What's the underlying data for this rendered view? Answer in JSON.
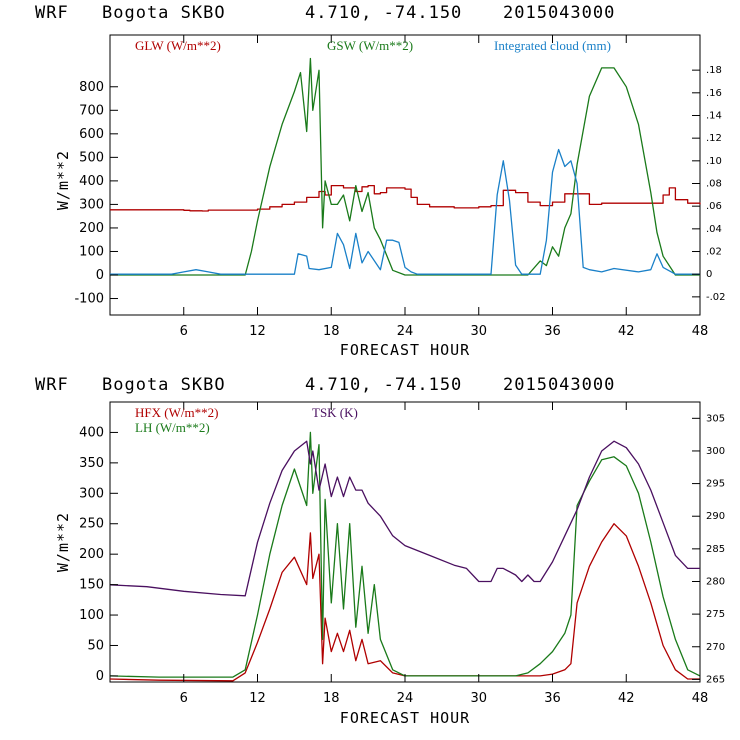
{
  "colors": {
    "red": "#b00000",
    "green": "#1a7a1a",
    "blue": "#1a80c8",
    "purple": "#4a1060",
    "axis": "#000000"
  },
  "chart_data": [
    {
      "type": "line",
      "header": {
        "model": "WRF",
        "station": "Bogota SKBO",
        "coords": "4.710, -74.150",
        "init": "2015043000"
      },
      "title": "WRF  Bogota SKBO  4.710, -74.150  2015043000",
      "xlabel": "FORECAST HOUR",
      "ylabel": "W/m**2",
      "xlim": [
        0,
        48
      ],
      "ylim": [
        -170,
        1020
      ],
      "y2lim": [
        -0.036,
        0.211
      ],
      "x_ticks": [
        6,
        12,
        18,
        24,
        30,
        36,
        42,
        48
      ],
      "y_ticks": [
        -100,
        0,
        100,
        200,
        300,
        400,
        500,
        600,
        700,
        800
      ],
      "y2_ticks": [
        {
          "value": -0.02,
          "label": "-.02"
        },
        {
          "value": 0,
          "label": "0"
        },
        {
          "value": 0.02,
          "label": ".02"
        },
        {
          "value": 0.04,
          "label": ".04"
        },
        {
          "value": 0.06,
          "label": ".06"
        },
        {
          "value": 0.08,
          "label": ".08"
        },
        {
          "value": 0.1,
          "label": ".10"
        },
        {
          "value": 0.12,
          "label": ".12"
        },
        {
          "value": 0.14,
          "label": ".14"
        },
        {
          "value": 0.16,
          "label": ".16"
        },
        {
          "value": 0.18,
          "label": ".18"
        }
      ],
      "series": [
        {
          "name": "GLW (W/m**2)",
          "color": "red",
          "axis": "left",
          "step": true,
          "x": [
            0,
            6,
            6.5,
            7.5,
            8,
            10,
            12,
            13,
            14,
            15,
            16,
            17,
            17.5,
            18,
            19,
            20,
            20.5,
            21,
            21.5,
            22,
            22.5,
            23,
            24,
            24.5,
            25,
            26,
            28,
            30,
            31,
            32,
            33,
            34,
            35,
            36,
            37,
            38,
            39,
            40,
            42,
            44,
            45,
            45.5,
            46,
            47,
            48
          ],
          "values": [
            277,
            275,
            273,
            272,
            276,
            276,
            280,
            290,
            300,
            310,
            330,
            355,
            340,
            380,
            370,
            355,
            375,
            380,
            345,
            350,
            370,
            370,
            365,
            330,
            300,
            290,
            285,
            290,
            295,
            360,
            350,
            310,
            295,
            310,
            345,
            345,
            300,
            305,
            305,
            305,
            340,
            370,
            320,
            305,
            300
          ]
        },
        {
          "name": "GSW (W/m**2)",
          "color": "green",
          "axis": "left",
          "step": false,
          "x": [
            0,
            11,
            11.5,
            12,
            13,
            14,
            15,
            15.5,
            16,
            16.3,
            16.5,
            17,
            17.3,
            17.5,
            18,
            18.5,
            19,
            19.5,
            20,
            20.5,
            21,
            21.5,
            22,
            23,
            24,
            25,
            32,
            34,
            35,
            35.5,
            36,
            36.5,
            37,
            37.5,
            38,
            39,
            40,
            41,
            42,
            43,
            44,
            44.5,
            45,
            46,
            47,
            48
          ],
          "values": [
            0,
            0,
            100,
            230,
            460,
            640,
            780,
            860,
            610,
            920,
            700,
            870,
            200,
            400,
            300,
            300,
            340,
            230,
            380,
            270,
            350,
            200,
            150,
            20,
            0,
            0,
            0,
            0,
            60,
            40,
            120,
            80,
            200,
            260,
            470,
            760,
            880,
            880,
            800,
            640,
            350,
            180,
            80,
            0,
            0,
            0
          ]
        },
        {
          "name": "Integrated cloud (mm)",
          "color": "blue",
          "axis": "right",
          "step": false,
          "x": [
            0,
            5,
            6,
            7,
            8,
            9,
            15,
            15.3,
            16,
            16.2,
            17,
            18,
            18.5,
            19,
            19.5,
            20,
            20.5,
            21,
            22,
            22.5,
            23,
            23.5,
            24,
            24.5,
            25,
            31,
            31.5,
            32,
            32.5,
            33,
            33.5,
            34,
            35,
            35.5,
            36,
            36.5,
            37,
            37.5,
            38,
            38.5,
            39,
            40,
            41,
            43,
            44,
            44.5,
            45,
            46,
            48
          ],
          "values": [
            0,
            0,
            0.002,
            0.004,
            0.002,
            0,
            0,
            0.018,
            0.016,
            0.005,
            0.004,
            0.006,
            0.036,
            0.026,
            0.005,
            0.036,
            0.01,
            0.02,
            0.004,
            0.03,
            0.03,
            0.028,
            0.006,
            0.002,
            0,
            0,
            0.07,
            0.1,
            0.065,
            0.008,
            0,
            0,
            0,
            0.03,
            0.09,
            0.11,
            0.095,
            0.1,
            0.08,
            0.006,
            0.004,
            0.002,
            0.005,
            0.002,
            0.004,
            0.018,
            0.006,
            0,
            0
          ]
        }
      ]
    },
    {
      "type": "line",
      "header": {
        "model": "WRF",
        "station": "Bogota SKBO",
        "coords": "4.710, -74.150",
        "init": "2015043000"
      },
      "title": "WRF  Bogota SKBO  4.710, -74.150  2015043000",
      "xlabel": "FORECAST HOUR",
      "ylabel": "W/m**2",
      "xlim": [
        0,
        48
      ],
      "ylim": [
        -10,
        450
      ],
      "y2lim": [
        264.6,
        307.5
      ],
      "x_ticks": [
        6,
        12,
        18,
        24,
        30,
        36,
        42,
        48
      ],
      "y_ticks": [
        0,
        50,
        100,
        150,
        200,
        250,
        300,
        350,
        400
      ],
      "y2_ticks": [
        265,
        270,
        275,
        280,
        285,
        290,
        295,
        300,
        305
      ],
      "series": [
        {
          "name": "HFX (W/m**2)",
          "color": "red",
          "axis": "left",
          "step": false,
          "x": [
            0,
            4,
            10,
            11,
            12,
            13,
            14,
            15,
            16,
            16.3,
            16.5,
            17,
            17.3,
            17.5,
            18,
            18.5,
            19,
            19.5,
            20,
            20.5,
            21,
            22,
            23,
            24,
            34,
            35,
            36,
            37,
            37.5,
            38,
            39,
            40,
            41,
            42,
            43,
            44,
            45,
            46,
            47,
            48
          ],
          "values": [
            -5,
            -7,
            -8,
            5,
            55,
            110,
            170,
            195,
            150,
            235,
            160,
            200,
            20,
            95,
            40,
            70,
            40,
            75,
            25,
            60,
            20,
            25,
            5,
            0,
            0,
            0,
            3,
            10,
            20,
            120,
            180,
            220,
            250,
            230,
            180,
            120,
            50,
            10,
            -5,
            -5
          ]
        },
        {
          "name": "LH (W/m**2)",
          "color": "green",
          "axis": "left",
          "step": false,
          "x": [
            0,
            4,
            10,
            11,
            12,
            13,
            14,
            15,
            16,
            16.3,
            16.5,
            17,
            17.3,
            17.5,
            18,
            18.5,
            19,
            19.5,
            20,
            20.5,
            21,
            21.5,
            22,
            23,
            24,
            33,
            34,
            35,
            36,
            37,
            37.5,
            38,
            39,
            40,
            41,
            42,
            43,
            44,
            45,
            46,
            47,
            48
          ],
          "values": [
            0,
            -2,
            -2,
            10,
            100,
            200,
            280,
            340,
            280,
            400,
            300,
            380,
            60,
            290,
            120,
            250,
            110,
            250,
            80,
            180,
            70,
            150,
            60,
            10,
            0,
            0,
            5,
            20,
            40,
            70,
            100,
            280,
            320,
            355,
            360,
            345,
            300,
            220,
            130,
            60,
            10,
            0
          ]
        },
        {
          "name": "TSK (K)",
          "color": "purple",
          "axis": "right",
          "step": false,
          "x": [
            0,
            3,
            6,
            9,
            11,
            12,
            13,
            14,
            15,
            16,
            16.3,
            16.5,
            17,
            17.5,
            18,
            18.5,
            19,
            19.5,
            20,
            20.5,
            21,
            22,
            23,
            24,
            26,
            28,
            29,
            30,
            31,
            31.5,
            32,
            33,
            33.5,
            34,
            34.5,
            35,
            36,
            37,
            38,
            39,
            40,
            41,
            42,
            43,
            44,
            45,
            46,
            47,
            48
          ],
          "values": [
            279.5,
            279.2,
            278.5,
            278,
            277.8,
            286,
            292,
            297,
            300,
            301.5,
            298,
            300,
            294,
            298,
            293,
            296,
            293,
            296,
            294,
            294,
            292,
            290,
            287,
            285.5,
            284,
            282.5,
            282,
            280,
            280,
            282,
            282,
            281,
            280,
            281,
            280,
            280,
            283,
            287,
            291,
            296,
            300,
            301.5,
            300.5,
            298,
            294,
            289,
            284,
            282,
            282
          ]
        }
      ]
    }
  ]
}
